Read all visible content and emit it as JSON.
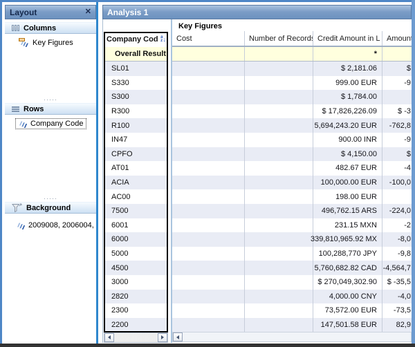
{
  "colors": {
    "frame_blue": "#4e86c6",
    "panel_border_blue": "#2f87cd",
    "titlebar_blue": "#7b9cc6",
    "row_alt": "#e9ecf5",
    "result_row_bg": "#ffffde",
    "selection_frame": "#000000"
  },
  "layout_panel": {
    "title": "Layout",
    "close_label": "✕",
    "splitter_dots": "·····",
    "sections": [
      {
        "label": "Columns",
        "items": [
          {
            "label": "Key Figures"
          }
        ]
      },
      {
        "label": "Rows",
        "items": [
          {
            "label": "Company Code"
          }
        ]
      },
      {
        "label": "Background",
        "items": [
          {
            "label": "2009008, 2006004,"
          }
        ]
      }
    ]
  },
  "analysis": {
    "title": "Analysis 1",
    "key_figures_label": "Key Figures",
    "row_header_label": "Company Cod",
    "sort_icon": {
      "top": "a",
      "bottom": "z",
      "arrow": "↓"
    },
    "column_headers": [
      "Cost",
      "Number of Records",
      "Credit Amount in L",
      "Amount"
    ],
    "result_row": {
      "label": "Overall Result",
      "cost": "",
      "records": "",
      "credit": "*",
      "amount": ""
    },
    "rows": [
      {
        "code": "SL01",
        "credit": "$ 2,181.06",
        "amount": "$"
      },
      {
        "code": "S330",
        "credit": "999.00 EUR",
        "amount": "-9"
      },
      {
        "code": "S300",
        "credit": "$ 1,784.00",
        "amount": ""
      },
      {
        "code": "R300",
        "credit": "$ 17,826,226.09",
        "amount": "$ -3"
      },
      {
        "code": "R100",
        "credit": "5,694,243.20 EUR",
        "amount": "-762,8"
      },
      {
        "code": "IN47",
        "credit": "900.00 INR",
        "amount": "-9"
      },
      {
        "code": "CPFO",
        "credit": "$ 4,150.00",
        "amount": "$"
      },
      {
        "code": "AT01",
        "credit": "482.67 EUR",
        "amount": "-4"
      },
      {
        "code": "ACIA",
        "credit": "100,000.00 EUR",
        "amount": "-100,0"
      },
      {
        "code": "AC00",
        "credit": "198.00 EUR",
        "amount": ""
      },
      {
        "code": "7500",
        "credit": "496,762.15 ARS",
        "amount": "-224,0"
      },
      {
        "code": "6001",
        "credit": "231.15 MXN",
        "amount": "-2"
      },
      {
        "code": "6000",
        "credit": "339,810,965.92 MX",
        "amount": "-8,0"
      },
      {
        "code": "5000",
        "credit": "100,288,770 JPY",
        "amount": "-9,8"
      },
      {
        "code": "4500",
        "credit": "5,760,682.82 CAD",
        "amount": "-4,564,7"
      },
      {
        "code": "3000",
        "credit": "$ 270,049,302.90",
        "amount": "$ -35,5"
      },
      {
        "code": "2820",
        "credit": "4,000.00 CNY",
        "amount": "-4,0"
      },
      {
        "code": "2300",
        "credit": "73,572.00 EUR",
        "amount": "-73,5"
      },
      {
        "code": "2200",
        "credit": "147,501.58 EUR",
        "amount": "82,9"
      }
    ]
  }
}
